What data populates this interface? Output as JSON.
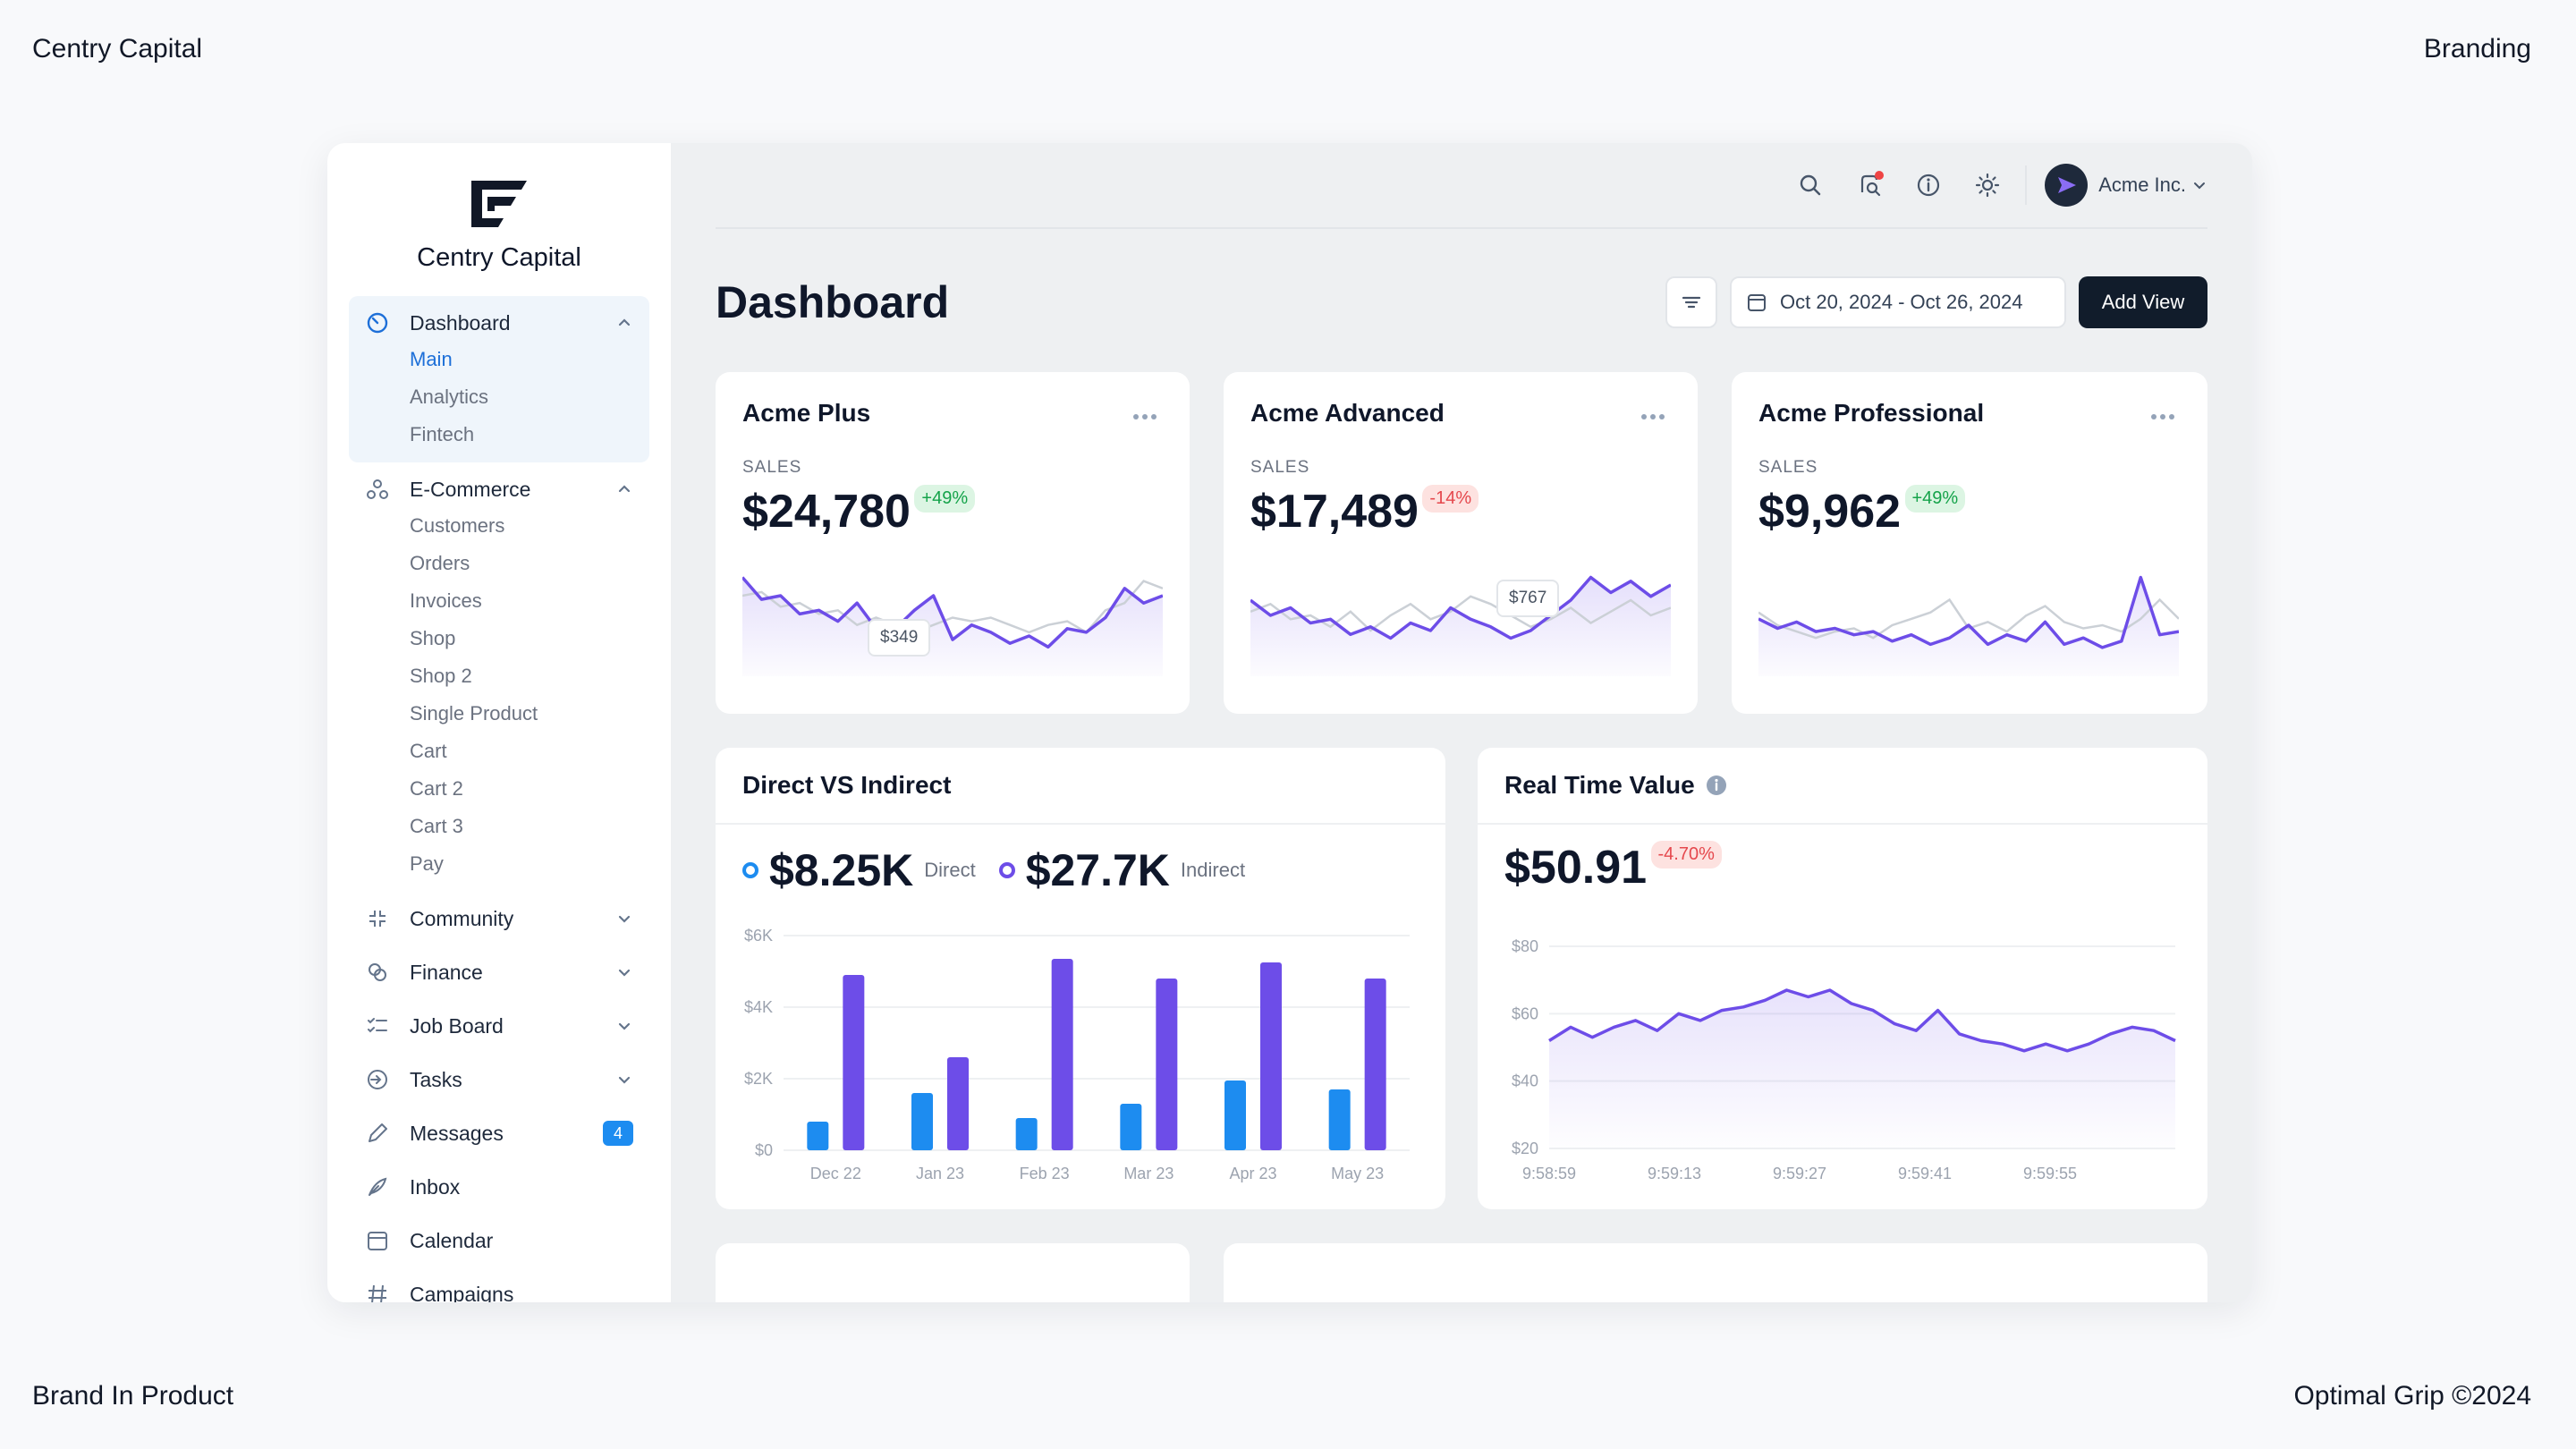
{
  "frame": {
    "top_left": "Centry Capital",
    "top_right": "Branding",
    "bottom_left": "Brand In Product",
    "bottom_right": "Optimal Grip ©2024"
  },
  "sidebar": {
    "brand_name": "Centry Capital",
    "dashboard": {
      "label": "Dashboard",
      "subitems": [
        "Main",
        "Analytics",
        "Fintech"
      ]
    },
    "ecommerce": {
      "label": "E-Commerce",
      "subitems": [
        "Customers",
        "Orders",
        "Invoices",
        "Shop",
        "Shop 2",
        "Single Product",
        "Cart",
        "Cart 2",
        "Cart 3",
        "Pay"
      ]
    },
    "community": "Community",
    "finance": "Finance",
    "job_board": "Job Board",
    "tasks": "Tasks",
    "messages": "Messages",
    "messages_count": "4",
    "inbox": "Inbox",
    "calendar": "Calendar",
    "campaigns": "Campaigns"
  },
  "topbar": {
    "account_name": "Acme Inc."
  },
  "header": {
    "title": "Dashboard",
    "date_range": "Oct 20, 2024 - Oct 26, 2024",
    "add_view": "Add View"
  },
  "cards": [
    {
      "title": "Acme Plus",
      "sales_label": "SALES",
      "value": "$24,780",
      "change": "+49%",
      "tooltip": "$349"
    },
    {
      "title": "Acme Advanced",
      "sales_label": "SALES",
      "value": "$17,489",
      "change": "-14%",
      "tooltip": "$767"
    },
    {
      "title": "Acme Professional",
      "sales_label": "SALES",
      "value": "$9,962",
      "change": "+49%"
    }
  ],
  "colors": {
    "accent_purple": "#6d4de8",
    "accent_blue": "#1d8cf0",
    "gray_line": "#cbd0d6",
    "up": "#15a34a",
    "down": "#e5484d"
  },
  "chart_data": [
    {
      "type": "line",
      "title": "Acme Plus",
      "series": [
        {
          "name": "Current",
          "values": [
            27,
            21,
            22,
            17,
            18,
            15,
            20,
            13,
            13,
            18,
            22,
            10,
            14,
            12,
            9,
            11,
            8,
            13,
            12,
            16,
            24,
            20,
            22
          ]
        },
        {
          "name": "Previous",
          "values": [
            22,
            23,
            19,
            20,
            17,
            18,
            14,
            16,
            14,
            12,
            14,
            16,
            15,
            16,
            14,
            12,
            14,
            15,
            12,
            18,
            20,
            26,
            24
          ]
        }
      ]
    },
    {
      "type": "line",
      "title": "Acme Advanced",
      "series": [
        {
          "name": "Current",
          "values": [
            20,
            16,
            18,
            14,
            15,
            11,
            13,
            10,
            14,
            12,
            18,
            15,
            13,
            10,
            12,
            16,
            20,
            26,
            22,
            25,
            21,
            24
          ]
        },
        {
          "name": "Previous",
          "values": [
            17,
            19,
            15,
            16,
            13,
            17,
            12,
            16,
            19,
            15,
            17,
            21,
            19,
            16,
            13,
            15,
            18,
            14,
            17,
            20,
            16,
            18
          ]
        }
      ]
    },
    {
      "type": "line",
      "title": "Acme Professional",
      "series": [
        {
          "name": "Current",
          "values": [
            18,
            15,
            17,
            14,
            15,
            13,
            14,
            11,
            13,
            10,
            12,
            16,
            10,
            13,
            11,
            17,
            10,
            12,
            9,
            11,
            31,
            13,
            14
          ]
        },
        {
          "name": "Previous",
          "values": [
            20,
            16,
            14,
            12,
            14,
            15,
            12,
            16,
            18,
            20,
            24,
            15,
            17,
            14,
            19,
            22,
            17,
            15,
            16,
            14,
            18,
            24,
            18
          ]
        }
      ]
    },
    {
      "type": "bar",
      "title": "Direct VS Indirect",
      "legend": [
        {
          "name": "Direct",
          "value": "$8.25K"
        },
        {
          "name": "Indirect",
          "value": "$27.7K"
        }
      ],
      "categories": [
        "Dec 22",
        "Jan 23",
        "Feb 23",
        "Mar 23",
        "Apr 23",
        "May 23"
      ],
      "series": [
        {
          "name": "Direct",
          "values": [
            800,
            1600,
            900,
            1300,
            1950,
            1700
          ]
        },
        {
          "name": "Indirect",
          "values": [
            4900,
            2600,
            5350,
            4800,
            5250,
            4800
          ]
        }
      ],
      "ylim": [
        0,
        6000
      ],
      "yticks": [
        "$0",
        "$2K",
        "$4K",
        "$6K"
      ]
    },
    {
      "type": "area",
      "title": "Real Time Value",
      "value": "$50.91",
      "change": "-4.70%",
      "x_ticks": [
        "9:58:59",
        "9:59:13",
        "9:59:27",
        "9:59:41",
        "9:59:55"
      ],
      "yticks": [
        "$20",
        "$40",
        "$60",
        "$80"
      ],
      "ylim": [
        20,
        80
      ],
      "values": [
        52,
        56,
        53,
        56,
        58,
        55,
        60,
        58,
        61,
        62,
        64,
        67,
        65,
        67,
        63,
        61,
        57,
        55,
        61,
        54,
        52,
        51,
        49,
        51,
        49,
        51,
        54,
        56,
        55,
        52
      ]
    }
  ]
}
